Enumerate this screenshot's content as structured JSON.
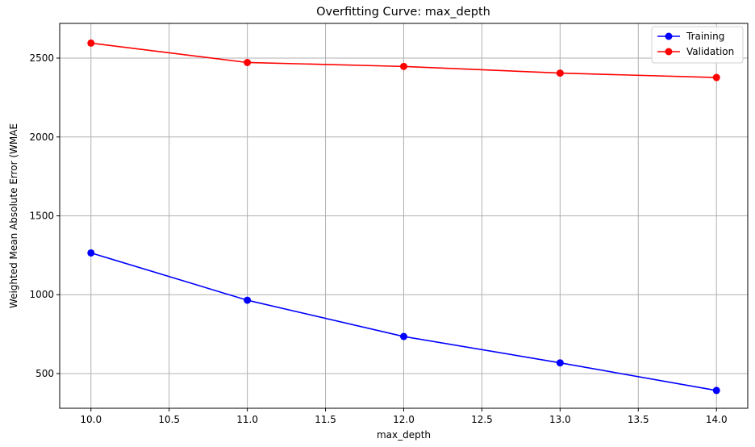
{
  "chart_data": {
    "type": "line",
    "title": "Overfitting Curve: max_depth",
    "xlabel": "max_depth",
    "ylabel": "Weighted Mean Absolute Error (WMAE",
    "x": [
      10.0,
      11.0,
      12.0,
      13.0,
      14.0
    ],
    "xlim": [
      9.8,
      14.2
    ],
    "ylim": [
      280,
      2720
    ],
    "xticks": [
      10.0,
      10.5,
      11.0,
      11.5,
      12.0,
      12.5,
      13.0,
      13.5,
      14.0
    ],
    "xtick_labels": [
      "10.0",
      "10.5",
      "11.0",
      "11.5",
      "12.0",
      "12.5",
      "13.0",
      "13.5",
      "14.0"
    ],
    "yticks": [
      500,
      1000,
      1500,
      2000,
      2500
    ],
    "ytick_labels": [
      "500",
      "1000",
      "1500",
      "2000",
      "2500"
    ],
    "grid": true,
    "legend_position": "top-right",
    "series": [
      {
        "name": "Training",
        "color": "#0000ff",
        "marker": "circle",
        "values": [
          1265,
          965,
          735,
          568,
          393
        ]
      },
      {
        "name": "Validation",
        "color": "#ff0000",
        "marker": "circle",
        "values": [
          2595,
          2472,
          2447,
          2405,
          2377
        ]
      }
    ]
  }
}
